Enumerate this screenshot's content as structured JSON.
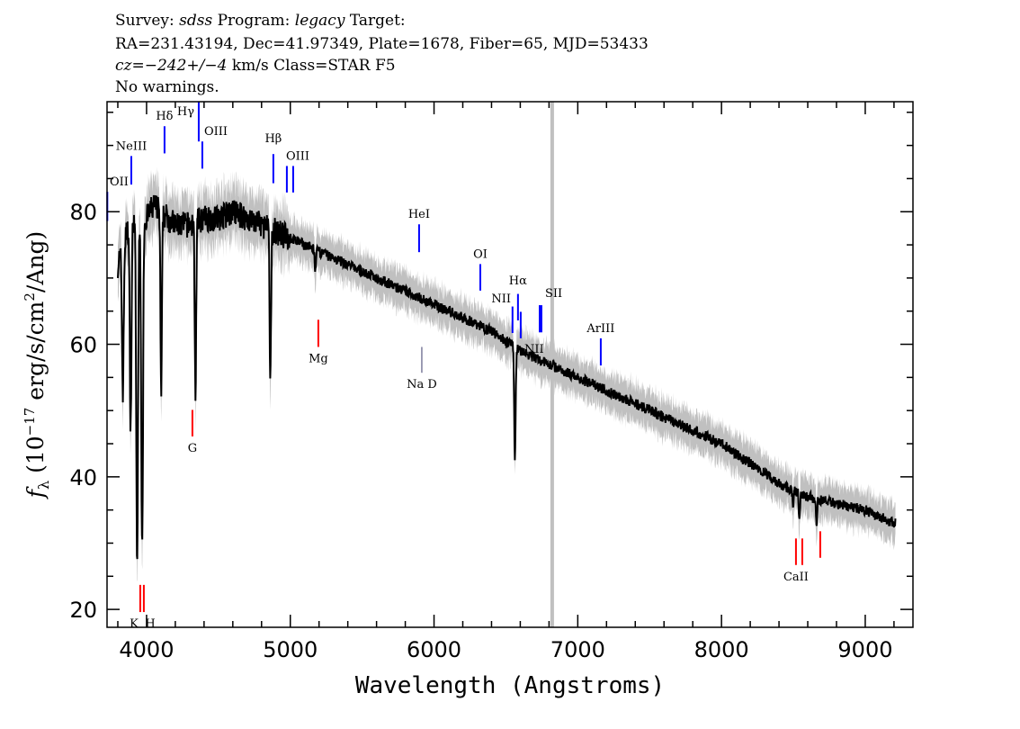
{
  "header": {
    "line1": {
      "survey_label": "Survey:",
      "survey": "sdss",
      "program_label": "Program:",
      "program": "legacy",
      "target_label": "Target:"
    },
    "line2": "RA=231.43194, Dec=41.97349, Plate=1678, Fiber=65, MJD=53433",
    "line3": {
      "cz": "cz=−242+/−4",
      "rest": " km/s Class=STAR F5"
    },
    "line4": "No warnings."
  },
  "chart_data": {
    "type": "line",
    "xlabel": "Wavelength (Angstroms)",
    "ylabel": "f_λ (10^-17 erg/s/cm^2/Ang)",
    "xlim": [
      3725,
      9332
    ],
    "ylim": [
      17.3,
      96.6
    ],
    "xticks": [
      4000,
      5000,
      6000,
      7000,
      8000,
      9000
    ],
    "yticks": [
      20,
      40,
      60,
      80
    ],
    "grid": false,
    "marker_line_wavelength": 6822,
    "colors": {
      "spectrum": "#000000",
      "error_band": "#c0c0c0",
      "emission": "#0000ff",
      "absorption": "#ff0000",
      "marker_line": "#c0c0c0"
    },
    "continuum": [
      [
        3800,
        72
      ],
      [
        3850,
        76
      ],
      [
        3900,
        79
      ],
      [
        3950,
        78
      ],
      [
        4000,
        79
      ],
      [
        4050,
        81
      ],
      [
        4100,
        80
      ],
      [
        4200,
        78
      ],
      [
        4300,
        78
      ],
      [
        4400,
        79
      ],
      [
        4500,
        79
      ],
      [
        4600,
        80
      ],
      [
        4700,
        79
      ],
      [
        4800,
        78
      ],
      [
        4900,
        77
      ],
      [
        5000,
        76
      ],
      [
        5100,
        75
      ],
      [
        5200,
        74
      ],
      [
        5400,
        72
      ],
      [
        5600,
        70
      ],
      [
        5800,
        68
      ],
      [
        6000,
        66
      ],
      [
        6200,
        64
      ],
      [
        6400,
        62
      ],
      [
        6600,
        59
      ],
      [
        6800,
        57
      ],
      [
        7000,
        55
      ],
      [
        7200,
        53
      ],
      [
        7500,
        50
      ],
      [
        7800,
        47
      ],
      [
        8000,
        45
      ],
      [
        8200,
        42
      ],
      [
        8400,
        39
      ],
      [
        8600,
        37
      ],
      [
        8800,
        36
      ],
      [
        9000,
        35
      ],
      [
        9200,
        33
      ]
    ],
    "absorption_features": [
      [
        3835,
        53
      ],
      [
        3889,
        48
      ],
      [
        3934,
        26
      ],
      [
        3969,
        28
      ],
      [
        4102,
        52
      ],
      [
        4340,
        53
      ],
      [
        4861,
        54
      ],
      [
        5175,
        71
      ],
      [
        6563,
        43
      ],
      [
        8498,
        35
      ],
      [
        8542,
        33
      ],
      [
        8662,
        33
      ]
    ],
    "line_markers": [
      {
        "label": "OII",
        "wavelength": 3727,
        "range": [
          78.6,
          83.0
        ],
        "kind": "emission"
      },
      {
        "label": "NeIII",
        "wavelength": 3894,
        "range": [
          84.1,
          88.4
        ],
        "kind": "emission"
      },
      {
        "label": "Hδ",
        "wavelength": 4125,
        "range": [
          88.8,
          92.9
        ],
        "kind": "emission"
      },
      {
        "label": "Hγ",
        "wavelength": 4363,
        "range": [
          90.6,
          97.0
        ],
        "kind": "emission"
      },
      {
        "label": "OIII",
        "wavelength": 4388,
        "range": [
          86.5,
          90.6
        ],
        "kind": "emission"
      },
      {
        "label": "Hβ",
        "wavelength": 4882,
        "range": [
          84.3,
          88.7
        ],
        "kind": "emission"
      },
      {
        "label": "OIII",
        "wavelength": 4976,
        "range": [
          82.9,
          86.9
        ],
        "kind": "emission",
        "pair": 5020
      },
      {
        "label": "HeI",
        "wavelength": 5896,
        "range": [
          73.9,
          78.1
        ],
        "kind": "emission"
      },
      {
        "label": "OI",
        "wavelength": 6322,
        "range": [
          68.1,
          72.1
        ],
        "kind": "emission"
      },
      {
        "label": "NII",
        "wavelength": 6546,
        "range": [
          61.7,
          65.7
        ],
        "kind": "emission"
      },
      {
        "label": "Hα",
        "wavelength": 6584,
        "range": [
          63.6,
          67.6
        ],
        "kind": "emission"
      },
      {
        "label": "NII",
        "wavelength": 6603,
        "range": [
          60.9,
          64.9
        ],
        "kind": "emission"
      },
      {
        "label": "SII",
        "wavelength": 6735,
        "range": [
          61.8,
          65.9
        ],
        "kind": "emission",
        "pair": 6747
      },
      {
        "label": "ArIII",
        "wavelength": 7160,
        "range": [
          56.8,
          60.9
        ],
        "kind": "emission"
      },
      {
        "label": "K",
        "wavelength": 3956,
        "range": [
          19.6,
          23.7
        ],
        "kind": "absorption"
      },
      {
        "label": "H",
        "wavelength": 3981,
        "range": [
          19.6,
          23.7
        ],
        "kind": "absorption"
      },
      {
        "label": "G",
        "wavelength": 4319,
        "range": [
          46.1,
          50.1
        ],
        "kind": "absorption"
      },
      {
        "label": "Mg",
        "wavelength": 5195,
        "range": [
          59.6,
          63.7
        ],
        "kind": "absorption"
      },
      {
        "label": "Na D",
        "wavelength": 5915,
        "range": [
          55.7,
          59.6
        ],
        "kind": "absorption-neutral"
      },
      {
        "label": "CaII",
        "wavelength": 8518,
        "range": [
          26.7,
          30.7
        ],
        "kind": "absorption",
        "extra": [
          8562,
          8687
        ]
      }
    ]
  }
}
